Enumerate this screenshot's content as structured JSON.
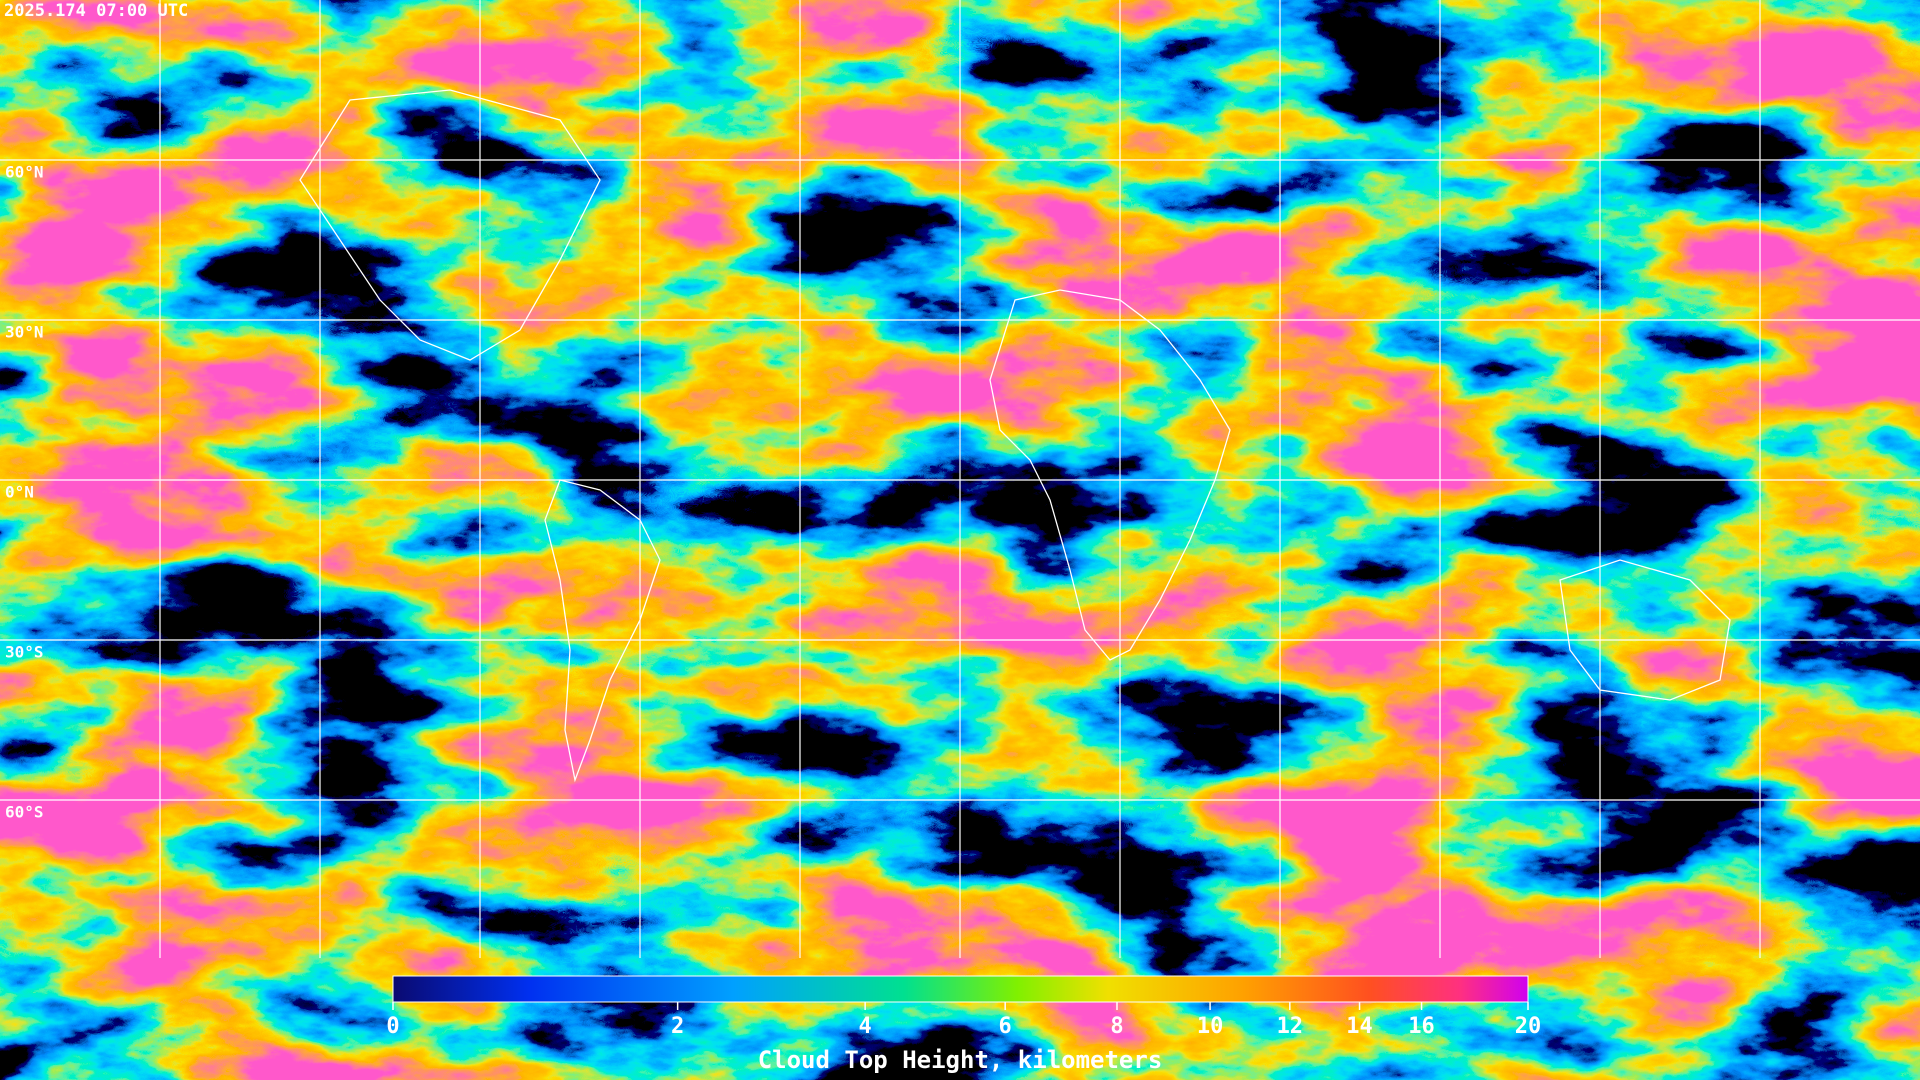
{
  "header": {
    "timestamp": "2025.174 07:00 UTC"
  },
  "map": {
    "latitude_labels": [
      "60°N",
      "30°N",
      "0°N",
      "30°S",
      "60°S"
    ]
  },
  "colorbar": {
    "title": "Cloud Top Height, kilometers",
    "range": [
      0,
      20
    ],
    "ticks": [
      0,
      2,
      4,
      6,
      8,
      10,
      12,
      14,
      16,
      20
    ]
  }
}
